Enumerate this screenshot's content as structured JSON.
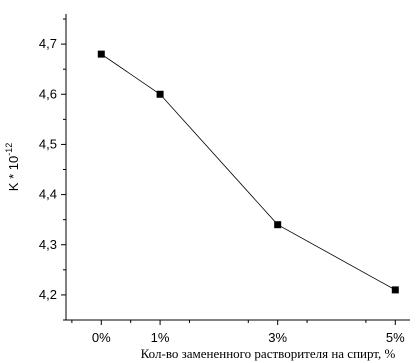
{
  "chart_data": {
    "type": "line",
    "title": "",
    "xlabel": "Кол-во замененного растворителя на спирт, %",
    "ylabel_base": "K * 10",
    "ylabel_exp": "-12",
    "categories": [
      "0%",
      "1%",
      "3%",
      "5%"
    ],
    "x": [
      0,
      1,
      3,
      5
    ],
    "values": [
      4.68,
      4.6,
      4.34,
      4.21
    ],
    "ylim": [
      4.15,
      4.76
    ],
    "xlim": [
      -0.6,
      5.25
    ],
    "y_ticks": [
      4.2,
      4.3,
      4.4,
      4.5,
      4.6,
      4.7
    ],
    "y_tick_labels": [
      "4,2",
      "4,3",
      "4,4",
      "4,5",
      "4,6",
      "4,7"
    ],
    "grid": false,
    "legend": "none",
    "colors": {
      "line": "#000000",
      "marker": "#000000"
    }
  }
}
